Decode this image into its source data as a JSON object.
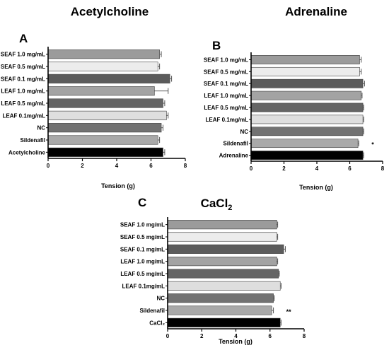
{
  "chart_data": [
    {
      "type": "bar",
      "orientation": "horizontal",
      "panel": "A",
      "title": "Acetylcholine",
      "xlabel": "Tension (g)",
      "xlim": [
        0,
        8
      ],
      "xticks": [
        0,
        2,
        4,
        6,
        8
      ],
      "categories": [
        "SEAF 1.0 mg/mL",
        "SEAF 0.5 mg/mL",
        "SEAF 0.1 mg/mL",
        "LEAF 1.0 mg/mL",
        "LEAF 0.5 mg/mL",
        "LEAF 0.1mg/mL",
        "NC",
        "Sildenafil",
        "Acetylcholine"
      ],
      "values": [
        6.5,
        6.4,
        7.1,
        6.2,
        6.7,
        6.9,
        6.6,
        6.4,
        6.7
      ],
      "errors": [
        0.1,
        0.1,
        0.1,
        0.8,
        0.1,
        0.1,
        0.1,
        0.1,
        0.1
      ],
      "colors": [
        "#9b9b9b",
        "#ececec",
        "#5c5c5c",
        "#a3a3a3",
        "#656565",
        "#dedede",
        "#727272",
        "#a9a9a9",
        "#000000"
      ],
      "significance": [
        "",
        "",
        "",
        "",
        "",
        "",
        "",
        "",
        ""
      ],
      "grid": false
    },
    {
      "type": "bar",
      "orientation": "horizontal",
      "panel": "B",
      "title": "Adrenaline",
      "xlabel": "Tension (g)",
      "xlim": [
        0,
        8
      ],
      "xticks": [
        0,
        2,
        4,
        6,
        8
      ],
      "categories": [
        "SEAF 1.0 mg/mL",
        "SEAF 0.5 mg/mL",
        "SEAF 0.1 mg/mL",
        "LEAF  1.0 mg/mL",
        "LEAF 0.5 mg/mL",
        "LEAF 0.1mg/mL",
        "NC",
        "Sildenafil",
        "Adrenaline"
      ],
      "values": [
        6.6,
        6.6,
        6.8,
        6.7,
        6.8,
        6.8,
        6.8,
        6.5,
        6.8
      ],
      "errors": [
        0.1,
        0.1,
        0.1,
        0.05,
        0.05,
        0.05,
        0.05,
        0.05,
        0.05
      ],
      "colors": [
        "#9b9b9b",
        "#ececec",
        "#5c5c5c",
        "#a3a3a3",
        "#656565",
        "#dedede",
        "#727272",
        "#a9a9a9",
        "#000000"
      ],
      "significance": [
        "",
        "",
        "",
        "",
        "",
        "",
        "",
        "*",
        ""
      ],
      "grid": false
    },
    {
      "type": "bar",
      "orientation": "horizontal",
      "panel": "C",
      "title": "CaCl",
      "title_subscript": "2",
      "xlabel": "Tension (g)",
      "xlim": [
        0,
        8
      ],
      "xticks": [
        0,
        2,
        4,
        6,
        8
      ],
      "categories": [
        "SEAF 1.0 mg/mL",
        "SEAF  0.5 mg/mL",
        "SEAF 0.1 mg/mL",
        "LEAF 1.0 mg/mL",
        "LEAF 0.5 mg/mL",
        "LEAF 0.1mg/mL",
        "NC",
        "Sildenafil",
        "CaCl₂"
      ],
      "values": [
        6.4,
        6.4,
        6.8,
        6.4,
        6.5,
        6.6,
        6.2,
        6.1,
        6.6
      ],
      "errors": [
        0.05,
        0.05,
        0.1,
        0.05,
        0.05,
        0.05,
        0.05,
        0.1,
        0.05
      ],
      "colors": [
        "#9b9b9b",
        "#ececec",
        "#5c5c5c",
        "#a3a3a3",
        "#656565",
        "#dedede",
        "#727272",
        "#a9a9a9",
        "#000000"
      ],
      "significance": [
        "",
        "",
        "",
        "",
        "",
        "",
        "",
        "**",
        ""
      ],
      "grid": false
    }
  ]
}
